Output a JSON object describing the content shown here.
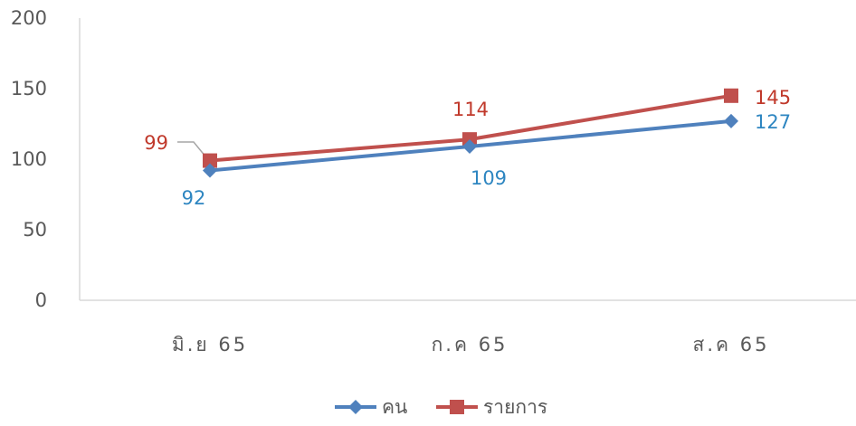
{
  "chart_data": {
    "type": "line",
    "categories": [
      "มิ.ย 65",
      "ก.ค 65",
      "ส.ค 65"
    ],
    "ylim": [
      0,
      200
    ],
    "yticks": [
      0,
      50,
      100,
      150,
      200
    ],
    "grid": false,
    "legend_position": "bottom",
    "series": [
      {
        "name": "คน",
        "values": [
          92,
          109,
          127
        ],
        "labels": [
          "92",
          "109",
          "127"
        ],
        "color": "#4F81BD",
        "label_color": "#2E86C1",
        "marker": "diamond"
      },
      {
        "name": "รายการ",
        "values": [
          99,
          114,
          145
        ],
        "labels": [
          "99",
          "114",
          "145"
        ],
        "color": "#C0504D",
        "label_color": "#C0392B",
        "marker": "square"
      }
    ]
  }
}
